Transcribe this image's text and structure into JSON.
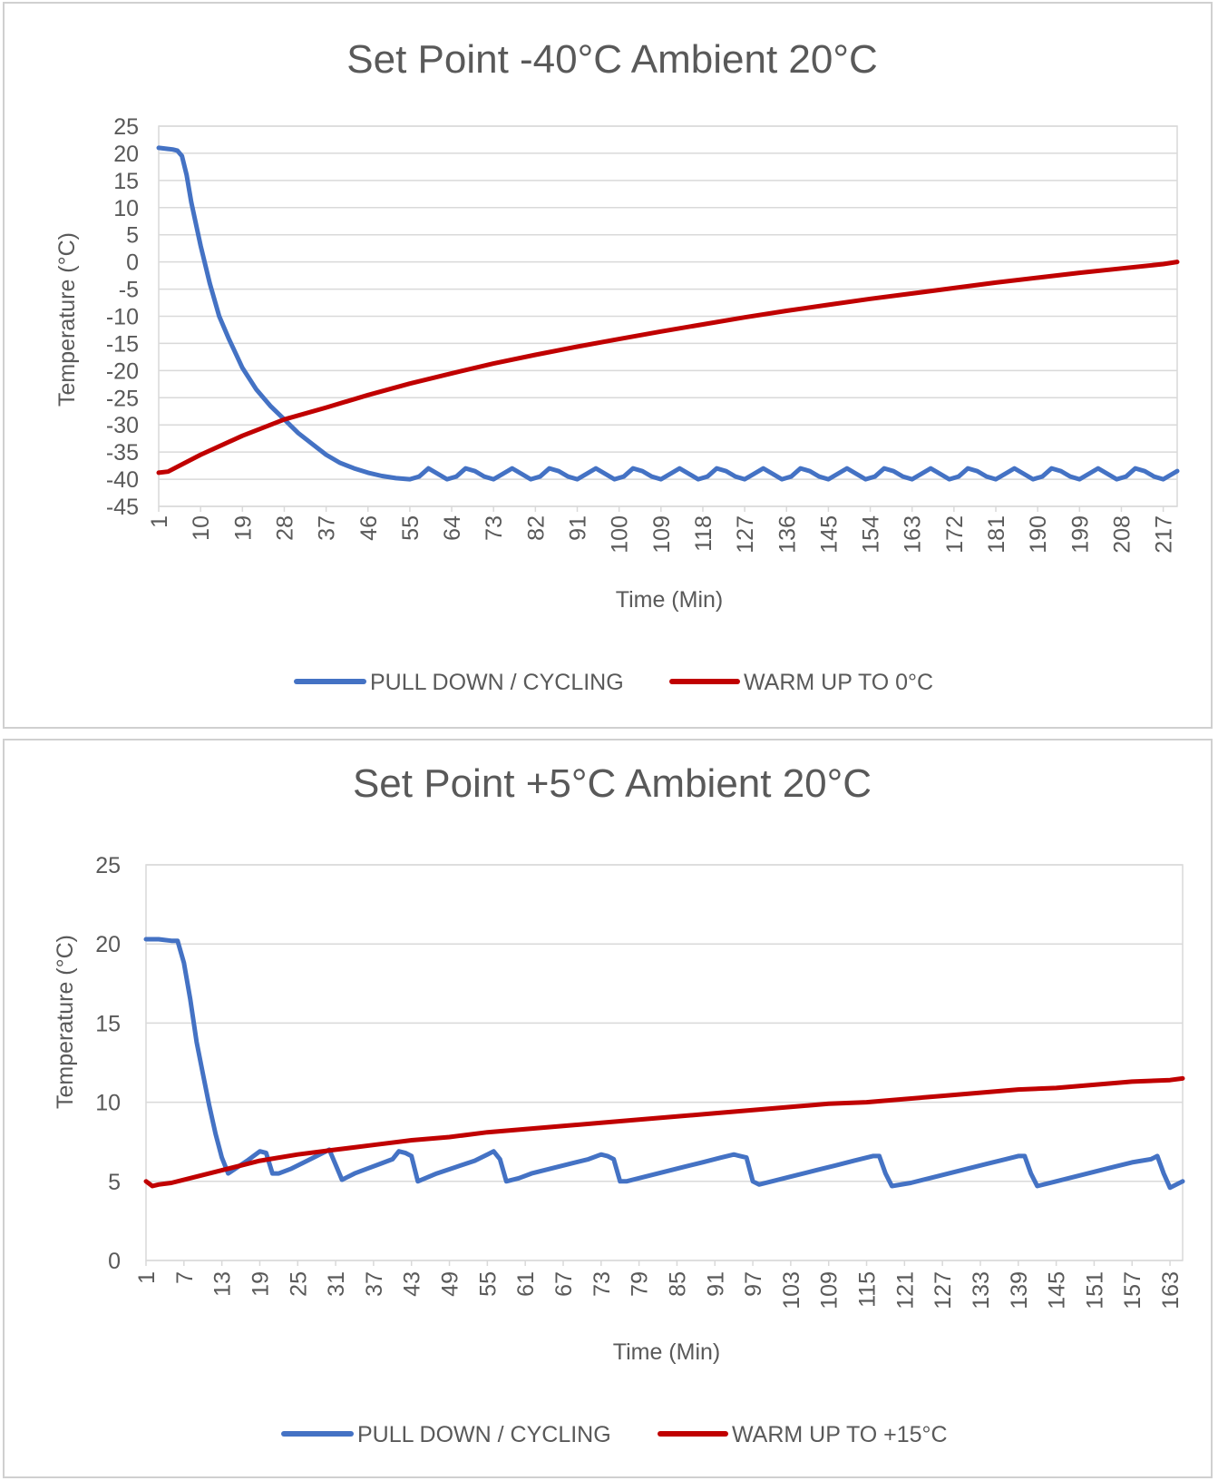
{
  "chart_data": [
    {
      "type": "line",
      "title": "Set Point -40°C Ambient 20°C",
      "xlabel": "Time (Min)",
      "ylabel": "Temperature (°C)",
      "ylim": [
        -45,
        25
      ],
      "yticks": [
        25,
        20,
        15,
        10,
        5,
        0,
        -5,
        -10,
        -15,
        -20,
        -25,
        -30,
        -35,
        -40,
        -45
      ],
      "xlim": [
        1,
        220
      ],
      "xtick_labels": [
        "1",
        "10",
        "19",
        "28",
        "37",
        "46",
        "55",
        "64",
        "73",
        "82",
        "91",
        "100",
        "109",
        "118",
        "127",
        "136",
        "145",
        "154",
        "163",
        "172",
        "181",
        "190",
        "199",
        "208",
        "217"
      ],
      "grid": "horizontal",
      "legend_position": "bottom",
      "series": [
        {
          "name": "PULL DOWN / CYCLING",
          "color": "#4472c4",
          "x": [
            1,
            3,
            4,
            5,
            6,
            7,
            8,
            10,
            12,
            14,
            16,
            19,
            22,
            25,
            28,
            31,
            34,
            37,
            40,
            43,
            46,
            49,
            52,
            55,
            57,
            59,
            61,
            63,
            65,
            67,
            69,
            71,
            73,
            75,
            77,
            79,
            81,
            83,
            85,
            87,
            89,
            91,
            93,
            95,
            97,
            99,
            101,
            103,
            105,
            107,
            109,
            111,
            113,
            115,
            117,
            119,
            121,
            123,
            125,
            127,
            129,
            131,
            133,
            135,
            137,
            139,
            141,
            143,
            145,
            147,
            149,
            151,
            153,
            155,
            157,
            159,
            161,
            163,
            165,
            167,
            169,
            171,
            173,
            175,
            177,
            179,
            181,
            183,
            185,
            187,
            189,
            191,
            193,
            195,
            197,
            199,
            201,
            203,
            205,
            207,
            209,
            211,
            213,
            215,
            217,
            219,
            220
          ],
          "y": [
            21,
            20.8,
            20.7,
            20.5,
            19.5,
            16,
            11,
            3,
            -4,
            -10,
            -14,
            -19.5,
            -23.5,
            -26.5,
            -29,
            -31.5,
            -33.5,
            -35.5,
            -37,
            -38,
            -38.8,
            -39.4,
            -39.8,
            -40,
            -39.5,
            -38,
            -39,
            -40,
            -39.5,
            -38,
            -38.5,
            -39.5,
            -40,
            -39,
            -38,
            -39,
            -40,
            -39.5,
            -38,
            -38.5,
            -39.5,
            -40,
            -39,
            -38,
            -39,
            -40,
            -39.5,
            -38,
            -38.5,
            -39.5,
            -40,
            -39,
            -38,
            -39,
            -40,
            -39.5,
            -38,
            -38.5,
            -39.5,
            -40,
            -39,
            -38,
            -39,
            -40,
            -39.5,
            -38,
            -38.5,
            -39.5,
            -40,
            -39,
            -38,
            -39,
            -40,
            -39.5,
            -38,
            -38.5,
            -39.5,
            -40,
            -39,
            -38,
            -39,
            -40,
            -39.5,
            -38,
            -38.5,
            -39.5,
            -40,
            -39,
            -38,
            -39,
            -40,
            -39.5,
            -38,
            -38.5,
            -39.5,
            -40,
            -39,
            -38,
            -39,
            -40,
            -39.5,
            -38,
            -38.5,
            -39.5,
            -40,
            -39,
            -38.5
          ]
        },
        {
          "name": "WARM UP TO 0°C",
          "color": "#c00000",
          "x": [
            1,
            3,
            10,
            19,
            28,
            37,
            46,
            55,
            64,
            73,
            82,
            91,
            100,
            109,
            118,
            127,
            136,
            145,
            154,
            163,
            172,
            181,
            190,
            199,
            208,
            217,
            220
          ],
          "y": [
            -38.8,
            -38.6,
            -35.5,
            -32,
            -29,
            -26.8,
            -24.5,
            -22.4,
            -20.5,
            -18.7,
            -17.1,
            -15.6,
            -14.2,
            -12.8,
            -11.5,
            -10.2,
            -9,
            -7.9,
            -6.8,
            -5.8,
            -4.8,
            -3.8,
            -2.9,
            -2,
            -1.2,
            -0.4,
            0
          ]
        }
      ]
    },
    {
      "type": "line",
      "title": "Set Point +5°C Ambient 20°C",
      "xlabel": "Time (Min)",
      "ylabel": "Temperature (°C)",
      "ylim": [
        0,
        25
      ],
      "yticks": [
        25,
        20,
        15,
        10,
        5,
        0
      ],
      "xlim": [
        1,
        165
      ],
      "xtick_labels": [
        "1",
        "7",
        "13",
        "19",
        "25",
        "31",
        "37",
        "43",
        "49",
        "55",
        "61",
        "67",
        "73",
        "79",
        "85",
        "91",
        "97",
        "103",
        "109",
        "115",
        "121",
        "127",
        "133",
        "139",
        "145",
        "151",
        "157",
        "163"
      ],
      "grid": "horizontal",
      "legend_position": "bottom",
      "series": [
        {
          "name": "PULL DOWN / CYCLING",
          "color": "#4472c4",
          "x": [
            1,
            3,
            5,
            6,
            7,
            8,
            9,
            10,
            11,
            12,
            13,
            14,
            17,
            19,
            20,
            21,
            22,
            24,
            26,
            28,
            30,
            32,
            34,
            36,
            38,
            40,
            41,
            42,
            43,
            44,
            47,
            50,
            53,
            55,
            56,
            57,
            58,
            60,
            62,
            65,
            68,
            71,
            73,
            74,
            75,
            76,
            77,
            80,
            83,
            86,
            89,
            92,
            94,
            95,
            96,
            97,
            98,
            101,
            104,
            107,
            110,
            113,
            116,
            117,
            118,
            119,
            122,
            125,
            128,
            131,
            134,
            137,
            139,
            140,
            141,
            142,
            145,
            148,
            151,
            154,
            157,
            160,
            161,
            162,
            163,
            165
          ],
          "y": [
            20.3,
            20.3,
            20.2,
            20.2,
            18.8,
            16.5,
            13.8,
            11.8,
            9.8,
            8,
            6.5,
            5.5,
            6.3,
            6.9,
            6.8,
            5.5,
            5.5,
            5.8,
            6.2,
            6.6,
            7,
            5.1,
            5.5,
            5.8,
            6.1,
            6.4,
            6.9,
            6.8,
            6.6,
            5,
            5.5,
            5.9,
            6.3,
            6.7,
            6.9,
            6.4,
            5,
            5.2,
            5.5,
            5.8,
            6.1,
            6.4,
            6.7,
            6.6,
            6.4,
            5,
            5,
            5.3,
            5.6,
            5.9,
            6.2,
            6.5,
            6.7,
            6.6,
            6.5,
            5,
            4.8,
            5.1,
            5.4,
            5.7,
            6,
            6.3,
            6.6,
            6.6,
            5.5,
            4.7,
            4.9,
            5.2,
            5.5,
            5.8,
            6.1,
            6.4,
            6.6,
            6.6,
            5.5,
            4.7,
            5,
            5.3,
            5.6,
            5.9,
            6.2,
            6.4,
            6.6,
            5.5,
            4.6,
            5
          ]
        },
        {
          "name": "WARM UP TO +15°C",
          "color": "#c00000",
          "x": [
            1,
            2,
            3,
            5,
            7,
            13,
            19,
            25,
            31,
            37,
            43,
            49,
            55,
            61,
            67,
            73,
            79,
            85,
            91,
            97,
            103,
            109,
            115,
            121,
            127,
            133,
            139,
            145,
            151,
            157,
            163,
            165
          ],
          "y": [
            5,
            4.7,
            4.8,
            4.9,
            5.1,
            5.7,
            6.3,
            6.7,
            7,
            7.3,
            7.6,
            7.8,
            8.1,
            8.3,
            8.5,
            8.7,
            8.9,
            9.1,
            9.3,
            9.5,
            9.7,
            9.9,
            10,
            10.2,
            10.4,
            10.6,
            10.8,
            10.9,
            11.1,
            11.3,
            11.4,
            11.5
          ]
        }
      ]
    }
  ]
}
